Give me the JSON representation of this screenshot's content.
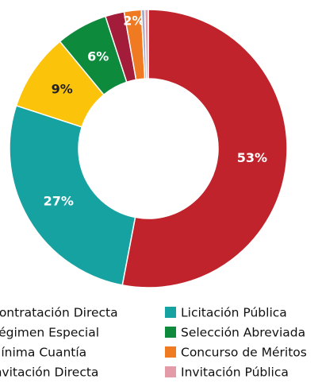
{
  "chart_data": {
    "type": "donut",
    "categories": [
      "Contratación Directa",
      "Licitación Pública",
      "Régimen Especial",
      "Selección Abreviada",
      "Mínima Cuantía",
      "Concurso de Méritos",
      "Invitación Directa",
      "Invitación Pública"
    ],
    "values": [
      53,
      27,
      9,
      6,
      2.2,
      2,
      0.4,
      0.4
    ],
    "value_labels": [
      "53%",
      "27%",
      "9%",
      "6%",
      null,
      "2%",
      null,
      null
    ],
    "colors": [
      "#c0232b",
      "#17a2a2",
      "#fcc30b",
      "#0d8a3c",
      "#a31c3a",
      "#f07a22",
      "#a9a9c9",
      "#e39ba7"
    ],
    "legend": "bottom"
  }
}
